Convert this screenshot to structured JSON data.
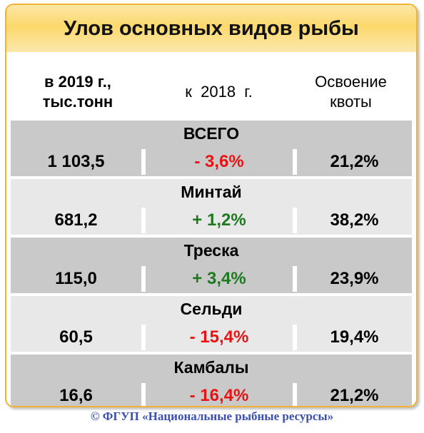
{
  "title": "Улов основных видов рыбы",
  "headers": {
    "col1_line1": "в 2019 г.,",
    "col1_line2": "тыс.тонн",
    "col2": "к  2018  г.",
    "col3_line1": "Освоение",
    "col3_line2": "квоты"
  },
  "rows": [
    {
      "name": "ВСЕГО",
      "catch": "1 103,5",
      "change": "- 3,6%",
      "quota": "21,2%",
      "change_color": "#e81414"
    },
    {
      "name": "Минтай",
      "catch": "681,2",
      "change": "+ 1,2%",
      "quota": "38,2%",
      "change_color": "#1e7a1e"
    },
    {
      "name": "Треска",
      "catch": "115,0",
      "change": "+ 3,4%",
      "quota": "23,9%",
      "change_color": "#1e7a1e"
    },
    {
      "name": "Сельди",
      "catch": "60,5",
      "change": "- 15,4%",
      "quota": "19,4%",
      "change_color": "#e81414"
    },
    {
      "name": "Камбалы",
      "catch": "16,6",
      "change": "- 16,4%",
      "quota": "21,2%",
      "change_color": "#e81414"
    }
  ],
  "colors": {
    "row_dark": "#c9c9c9",
    "row_light": "#e8e8e8",
    "title_bg": "#fcd96c",
    "border": "#f2b233",
    "footer_text": "#3a4fb0"
  },
  "footer": "© ФГУП «Национальные рыбные ресурсы»"
}
